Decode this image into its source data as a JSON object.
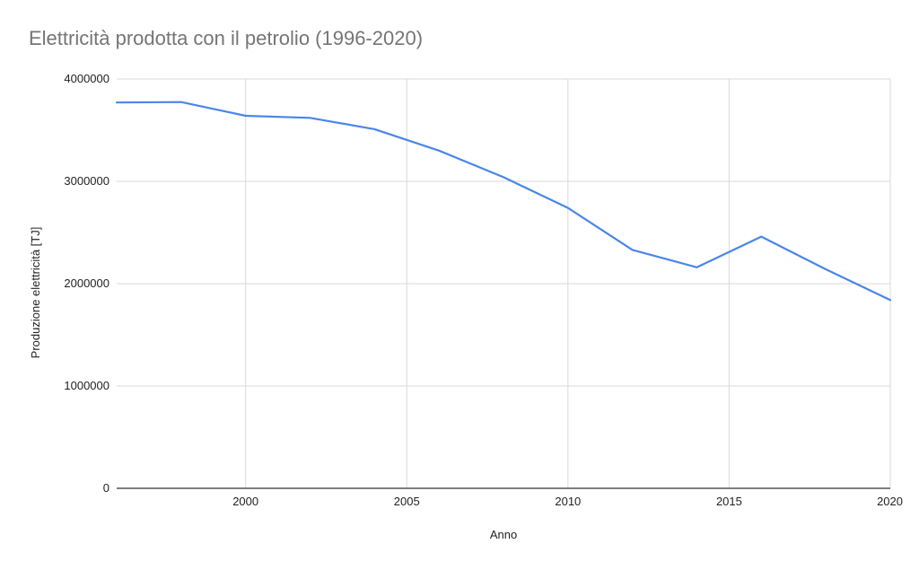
{
  "chart_data": {
    "type": "line",
    "title": "Elettricità prodotta con il petrolio (1996-2020)",
    "xlabel": "Anno",
    "ylabel": "Produzione elettricità [TJ]",
    "xlim": [
      1996,
      2020
    ],
    "ylim": [
      0,
      4000000
    ],
    "x_ticks": [
      2000,
      2005,
      2010,
      2015,
      2020
    ],
    "y_ticks": [
      0,
      1000000,
      2000000,
      3000000,
      4000000
    ],
    "grid": true,
    "legend": "none",
    "series": [
      {
        "color": "#4a86e8",
        "x": [
          1996,
          1998,
          2000,
          2002,
          2004,
          2006,
          2008,
          2010,
          2012,
          2014,
          2016,
          2018,
          2020
        ],
        "y": [
          3770000,
          3775000,
          3640000,
          3620000,
          3510000,
          3300000,
          3040000,
          2740000,
          2330000,
          2160000,
          2460000,
          2140000,
          1840000
        ]
      }
    ]
  }
}
